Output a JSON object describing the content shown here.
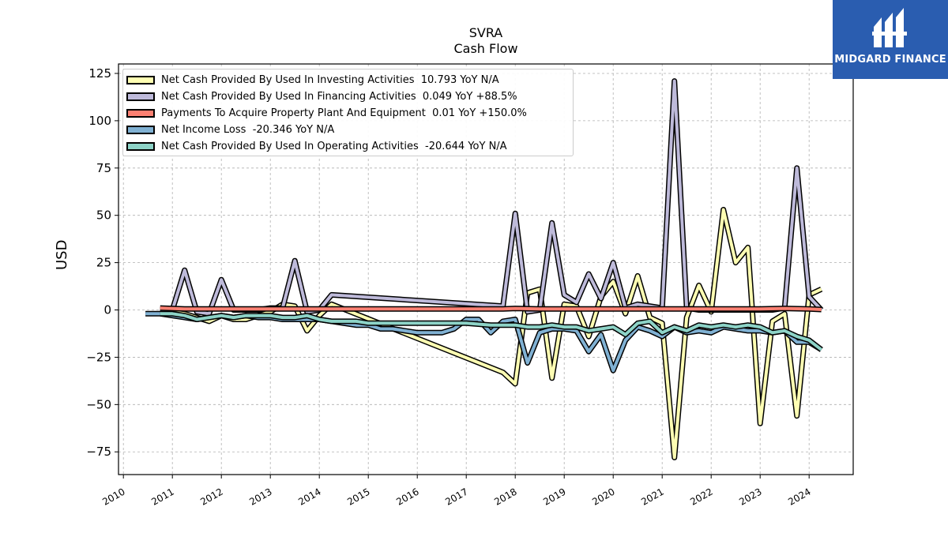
{
  "title": "SVRA",
  "subtitle": "Cash Flow",
  "logo": {
    "text": "MIDGARD FINANCE",
    "icon": "midgard-logo-icon"
  },
  "colors": {
    "investing": "#ffffb3",
    "financing": "#bebada",
    "capex": "#fb8072",
    "netincome": "#80b1d3",
    "operating": "#8dd3c7",
    "background": "#ffffff",
    "grid": "#b0b0b0",
    "logo_bg": "#2a5db0"
  },
  "legend_entries": [
    {
      "label": "Net Cash Provided By Used In Investing Activities  10.793 YoY N/A",
      "color": "#ffffb3"
    },
    {
      "label": "Net Cash Provided By Used In Financing Activities  0.049 YoY +88.5%",
      "color": "#bebada"
    },
    {
      "label": "Payments To Acquire Property Plant And Equipment  0.01 YoY +150.0%",
      "color": "#fb8072"
    },
    {
      "label": "Net Income Loss  -20.346 YoY N/A",
      "color": "#80b1d3"
    },
    {
      "label": "Net Cash Provided By Used In Operating Activities  -20.644 YoY N/A",
      "color": "#8dd3c7"
    }
  ],
  "chart_data": {
    "type": "line",
    "title": "SVRA",
    "subtitle": "Cash Flow",
    "xlabel": "",
    "ylabel": "USD",
    "xlim": [
      2009.9,
      2024.9
    ],
    "ylim": [
      -87,
      130
    ],
    "x_ticks": [
      2010,
      2011,
      2012,
      2013,
      2014,
      2015,
      2016,
      2017,
      2018,
      2019,
      2020,
      2021,
      2022,
      2023,
      2024
    ],
    "y_ticks": [
      -75,
      -50,
      -25,
      0,
      25,
      50,
      75,
      100,
      125
    ],
    "x_tick_labels": [
      "2010",
      "2011",
      "2012",
      "2013",
      "2014",
      "2015",
      "2016",
      "2017",
      "2018",
      "2019",
      "2020",
      "2021",
      "2022",
      "2023",
      "2024"
    ],
    "y_tick_labels": [
      "−75",
      "−50",
      "−25",
      "0",
      "25",
      "50",
      "75",
      "100",
      "125"
    ],
    "grid": true,
    "legend_position": "upper-left",
    "series": [
      {
        "name": "Net Cash Provided By Used In Investing Activities  10.793 YoY N/A",
        "color": "#ffffb3",
        "points": [
          [
            2010.75,
            0
          ],
          [
            2011.0,
            -1
          ],
          [
            2011.25,
            -2
          ],
          [
            2011.5,
            -4
          ],
          [
            2011.75,
            -6
          ],
          [
            2012.0,
            -3
          ],
          [
            2012.25,
            -5
          ],
          [
            2012.5,
            -5
          ],
          [
            2012.75,
            -3
          ],
          [
            2013.0,
            -1
          ],
          [
            2013.25,
            3
          ],
          [
            2013.5,
            2
          ],
          [
            2013.75,
            -11
          ],
          [
            2014.0,
            -3
          ],
          [
            2014.25,
            3
          ],
          [
            2017.75,
            -33
          ],
          [
            2018.0,
            -39
          ],
          [
            2018.25,
            9
          ],
          [
            2018.5,
            11
          ],
          [
            2018.75,
            -36
          ],
          [
            2019.0,
            3
          ],
          [
            2019.25,
            2
          ],
          [
            2019.5,
            -14
          ],
          [
            2019.75,
            7
          ],
          [
            2020.0,
            15
          ],
          [
            2020.25,
            -2
          ],
          [
            2020.5,
            18
          ],
          [
            2020.75,
            -4
          ],
          [
            2021.0,
            -7
          ],
          [
            2021.25,
            -78
          ],
          [
            2021.5,
            -4
          ],
          [
            2021.75,
            13
          ],
          [
            2022.0,
            -1
          ],
          [
            2022.25,
            53
          ],
          [
            2022.5,
            25
          ],
          [
            2022.75,
            33
          ],
          [
            2023.0,
            -60
          ],
          [
            2023.25,
            -6
          ],
          [
            2023.5,
            -2
          ],
          [
            2023.75,
            -56
          ],
          [
            2024.0,
            8
          ],
          [
            2024.25,
            11
          ]
        ]
      },
      {
        "name": "Net Cash Provided By Used In Financing Activities  0.049 YoY +88.5%",
        "color": "#bebada",
        "points": [
          [
            2010.75,
            0
          ],
          [
            2011.0,
            0
          ],
          [
            2011.25,
            21
          ],
          [
            2011.5,
            -1
          ],
          [
            2011.75,
            -2
          ],
          [
            2012.0,
            16
          ],
          [
            2012.25,
            0
          ],
          [
            2012.5,
            0
          ],
          [
            2012.75,
            0
          ],
          [
            2013.0,
            1
          ],
          [
            2013.25,
            1
          ],
          [
            2013.5,
            26
          ],
          [
            2013.75,
            -1
          ],
          [
            2014.0,
            0
          ],
          [
            2014.25,
            8
          ],
          [
            2017.75,
            2
          ],
          [
            2018.0,
            51
          ],
          [
            2018.25,
            -1
          ],
          [
            2018.5,
            0
          ],
          [
            2018.75,
            46
          ],
          [
            2019.0,
            8
          ],
          [
            2019.25,
            4
          ],
          [
            2019.5,
            19
          ],
          [
            2019.75,
            6
          ],
          [
            2020.0,
            25
          ],
          [
            2020.25,
            1
          ],
          [
            2020.5,
            3
          ],
          [
            2020.75,
            2
          ],
          [
            2021.0,
            1
          ],
          [
            2021.25,
            121
          ],
          [
            2021.5,
            1
          ],
          [
            2021.75,
            0
          ],
          [
            2022.0,
            0
          ],
          [
            2022.25,
            0
          ],
          [
            2022.5,
            0
          ],
          [
            2022.75,
            0
          ],
          [
            2023.0,
            0
          ],
          [
            2023.25,
            0
          ],
          [
            2023.5,
            1
          ],
          [
            2023.75,
            75
          ],
          [
            2024.0,
            7
          ],
          [
            2024.25,
            0
          ]
        ]
      },
      {
        "name": "Payments To Acquire Property Plant And Equipment  0.01 YoY +150.0%",
        "color": "#fb8072",
        "points": [
          [
            2010.75,
            1
          ],
          [
            2011.25,
            0.5
          ],
          [
            2011.75,
            0.5
          ],
          [
            2012.25,
            0.5
          ],
          [
            2012.75,
            0.5
          ],
          [
            2013.25,
            0.5
          ],
          [
            2013.75,
            0.5
          ],
          [
            2014.25,
            0.5
          ],
          [
            2017.75,
            0.5
          ],
          [
            2018.0,
            0.8
          ],
          [
            2018.5,
            0.5
          ],
          [
            2019.0,
            0.5
          ],
          [
            2019.5,
            0.5
          ],
          [
            2020.0,
            0.5
          ],
          [
            2020.5,
            0.5
          ],
          [
            2021.0,
            0.5
          ],
          [
            2021.5,
            0.5
          ],
          [
            2022.0,
            0.5
          ],
          [
            2022.5,
            0.5
          ],
          [
            2023.0,
            0.5
          ],
          [
            2023.5,
            0.8
          ],
          [
            2024.0,
            0.5
          ],
          [
            2024.25,
            0.2
          ]
        ]
      },
      {
        "name": "Net Income Loss  -20.346 YoY N/A",
        "color": "#80b1d3",
        "points": [
          [
            2010.45,
            -2
          ],
          [
            2010.75,
            -2
          ],
          [
            2011.0,
            -3
          ],
          [
            2011.25,
            -4
          ],
          [
            2011.5,
            -5
          ],
          [
            2011.75,
            -4
          ],
          [
            2012.0,
            -3
          ],
          [
            2012.25,
            -4
          ],
          [
            2012.5,
            -3
          ],
          [
            2012.75,
            -4
          ],
          [
            2013.0,
            -4
          ],
          [
            2013.25,
            -5
          ],
          [
            2013.5,
            -5
          ],
          [
            2013.75,
            -5
          ],
          [
            2014.0,
            -5
          ],
          [
            2014.25,
            -6
          ],
          [
            2014.75,
            -8
          ],
          [
            2015.0,
            -8
          ],
          [
            2015.25,
            -10
          ],
          [
            2015.5,
            -10
          ],
          [
            2015.75,
            -11
          ],
          [
            2016.0,
            -12
          ],
          [
            2016.25,
            -12
          ],
          [
            2016.5,
            -12
          ],
          [
            2016.75,
            -10
          ],
          [
            2017.0,
            -5
          ],
          [
            2017.25,
            -5
          ],
          [
            2017.5,
            -12
          ],
          [
            2017.75,
            -6
          ],
          [
            2018.0,
            -5
          ],
          [
            2018.25,
            -28
          ],
          [
            2018.5,
            -12
          ],
          [
            2018.75,
            -10
          ],
          [
            2019.0,
            -10
          ],
          [
            2019.25,
            -11
          ],
          [
            2019.5,
            -22
          ],
          [
            2019.75,
            -13
          ],
          [
            2020.0,
            -32
          ],
          [
            2020.25,
            -16
          ],
          [
            2020.5,
            -9
          ],
          [
            2020.75,
            -11
          ],
          [
            2021.0,
            -14
          ],
          [
            2021.25,
            -9
          ],
          [
            2021.5,
            -12
          ],
          [
            2021.75,
            -11
          ],
          [
            2022.0,
            -12
          ],
          [
            2022.25,
            -9
          ],
          [
            2022.5,
            -10
          ],
          [
            2022.75,
            -11
          ],
          [
            2023.0,
            -11
          ],
          [
            2023.25,
            -12
          ],
          [
            2023.5,
            -11
          ],
          [
            2023.75,
            -17
          ],
          [
            2024.0,
            -17
          ],
          [
            2024.25,
            -21
          ]
        ]
      },
      {
        "name": "Net Cash Provided By Used In Operating Activities  -20.644 YoY N/A",
        "color": "#8dd3c7",
        "points": [
          [
            2010.75,
            -2
          ],
          [
            2011.0,
            -2
          ],
          [
            2011.25,
            -3
          ],
          [
            2011.5,
            -5
          ],
          [
            2011.75,
            -4
          ],
          [
            2012.0,
            -3
          ],
          [
            2012.25,
            -4
          ],
          [
            2012.5,
            -3
          ],
          [
            2012.75,
            -3
          ],
          [
            2013.0,
            -3
          ],
          [
            2013.25,
            -4
          ],
          [
            2013.5,
            -4
          ],
          [
            2013.75,
            -3
          ],
          [
            2014.0,
            -5
          ],
          [
            2014.25,
            -6
          ],
          [
            2014.75,
            -6
          ],
          [
            2015.0,
            -7
          ],
          [
            2015.5,
            -7
          ],
          [
            2016.0,
            -7
          ],
          [
            2016.5,
            -7
          ],
          [
            2017.0,
            -7
          ],
          [
            2017.5,
            -8
          ],
          [
            2017.75,
            -8
          ],
          [
            2018.0,
            -8
          ],
          [
            2018.25,
            -9
          ],
          [
            2018.5,
            -9
          ],
          [
            2018.75,
            -8
          ],
          [
            2019.0,
            -9
          ],
          [
            2019.25,
            -9
          ],
          [
            2019.5,
            -11
          ],
          [
            2019.75,
            -10
          ],
          [
            2020.0,
            -9
          ],
          [
            2020.25,
            -13
          ],
          [
            2020.5,
            -7
          ],
          [
            2020.75,
            -6
          ],
          [
            2021.0,
            -12
          ],
          [
            2021.25,
            -9
          ],
          [
            2021.5,
            -11
          ],
          [
            2021.75,
            -8
          ],
          [
            2022.0,
            -9
          ],
          [
            2022.25,
            -8
          ],
          [
            2022.5,
            -9
          ],
          [
            2022.75,
            -8
          ],
          [
            2023.0,
            -9
          ],
          [
            2023.25,
            -12
          ],
          [
            2023.5,
            -11
          ],
          [
            2023.75,
            -14
          ],
          [
            2024.0,
            -16
          ],
          [
            2024.25,
            -21
          ]
        ]
      }
    ]
  }
}
